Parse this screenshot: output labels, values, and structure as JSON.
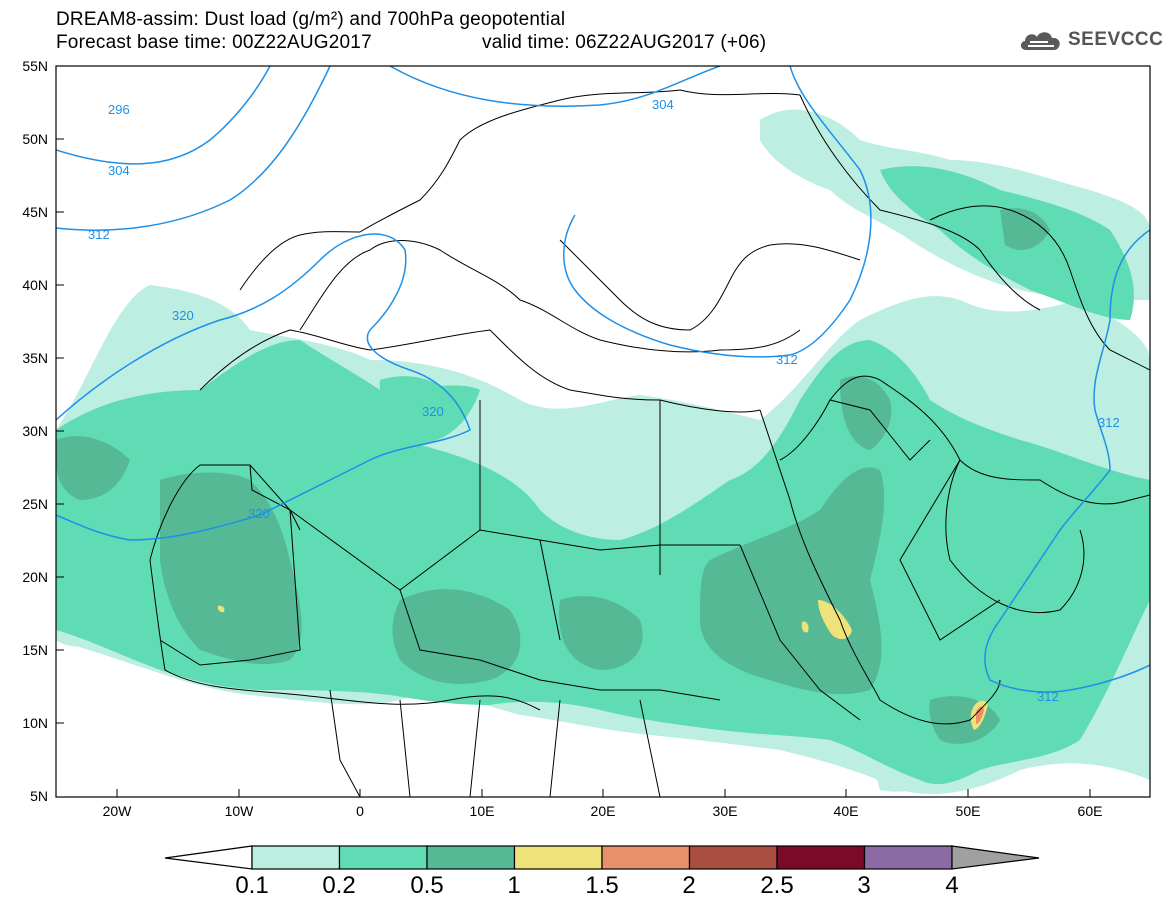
{
  "title": {
    "line1": "DREAM8-assim: Dust load (g/m²) and 700hPa geopotential",
    "base_time": "Forecast base time: 00Z22AUG2017",
    "valid_time": "valid time: 06Z22AUG2017 (+06)"
  },
  "logo": {
    "text": "SEEVCCC",
    "icon": "cloud-icon"
  },
  "map": {
    "region": "North Africa, Europe and Middle East",
    "lon_range": [
      -25,
      65
    ],
    "lat_range": [
      5,
      55
    ],
    "lat_ticks": [
      "55N",
      "50N",
      "45N",
      "40N",
      "35N",
      "30N",
      "25N",
      "20N",
      "15N",
      "10N",
      "5N"
    ],
    "lon_ticks": [
      "20W",
      "10W",
      "0",
      "10E",
      "20E",
      "30E",
      "40E",
      "50E",
      "60E"
    ],
    "contour_labels": [
      "296",
      "304",
      "304",
      "312",
      "320",
      "320",
      "320",
      "312",
      "312",
      "312"
    ]
  },
  "colorbar": {
    "labels": [
      "0.1",
      "0.2",
      "0.5",
      "1",
      "1.5",
      "2",
      "2.5",
      "3",
      "4"
    ],
    "colors": [
      "#bdeee2",
      "#5fdcb3",
      "#55b995",
      "#efe27a",
      "#e8906a",
      "#a94f42",
      "#7a0a28",
      "#8c6aa3",
      "#a0a0a0"
    ]
  },
  "colors": {
    "light": "#bdeee2",
    "medium": "#5fdcb3",
    "dark": "#55b995",
    "yellow": "#efe27a",
    "orange": "#e8906a",
    "contour": "#1e90e8"
  }
}
